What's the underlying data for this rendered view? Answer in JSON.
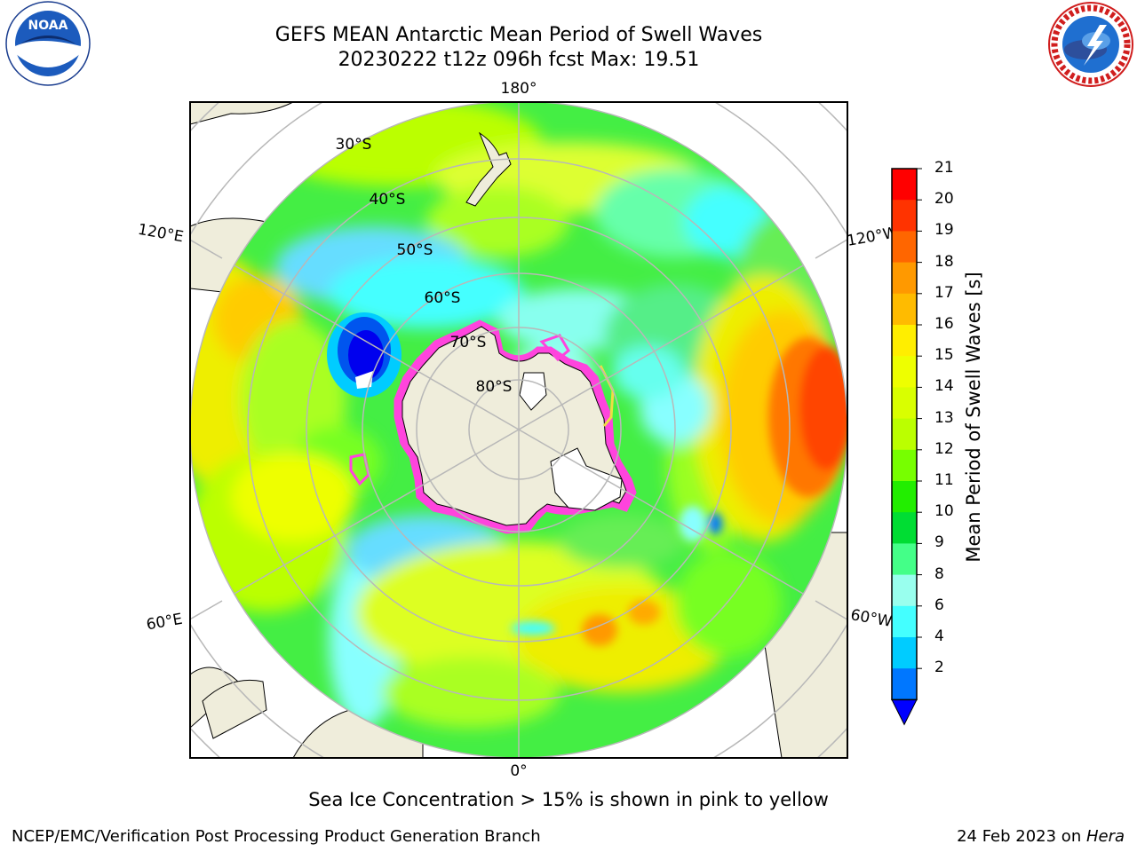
{
  "title": {
    "line1": "GEFS MEAN Antarctic Mean Period of Swell Waves",
    "line2": "20230222 t12z 096h fcst   Max: 19.51"
  },
  "logos": {
    "left": "noaa-logo",
    "right": "national-weather-service-logo"
  },
  "map": {
    "projection": "south-polar-stereographic",
    "lon_labels": {
      "top": "180°",
      "bottom": "0°",
      "left_upper": "120°E",
      "left_lower": "60°E",
      "right_upper": "120°W",
      "right_lower": "60°W"
    },
    "lat_labels": [
      "30°S",
      "40°S",
      "50°S",
      "60°S",
      "70°S",
      "80°S"
    ],
    "colors": {
      "land": "#efeddb",
      "ice_edge": "#ff44dd",
      "graticule": "#b8b8b8"
    }
  },
  "colorbar": {
    "title": "Mean Period of Swell Waves [s]",
    "ticks": [
      "21",
      "20",
      "19",
      "18",
      "17",
      "16",
      "15",
      "14",
      "13",
      "12",
      "11",
      "10",
      "9",
      "8",
      "6",
      "4",
      "2"
    ],
    "colors_top_to_bottom": [
      "#ff0000",
      "#ff3300",
      "#ff6600",
      "#ff9900",
      "#ffbb00",
      "#ffee00",
      "#eeff00",
      "#d9ff00",
      "#bbff00",
      "#77ff00",
      "#22ee00",
      "#00dd33",
      "#44ff88",
      "#99ffee",
      "#44ffff",
      "#00ccff",
      "#0077ff"
    ],
    "extend_below_color": "#0000ff"
  },
  "note": "Sea Ice Concentration > 15% is shown in pink to yellow",
  "footer": {
    "left": "NCEP/EMC/Verification Post Processing Product Generation Branch",
    "date": "24 Feb 2023 on ",
    "host": "Hera"
  }
}
